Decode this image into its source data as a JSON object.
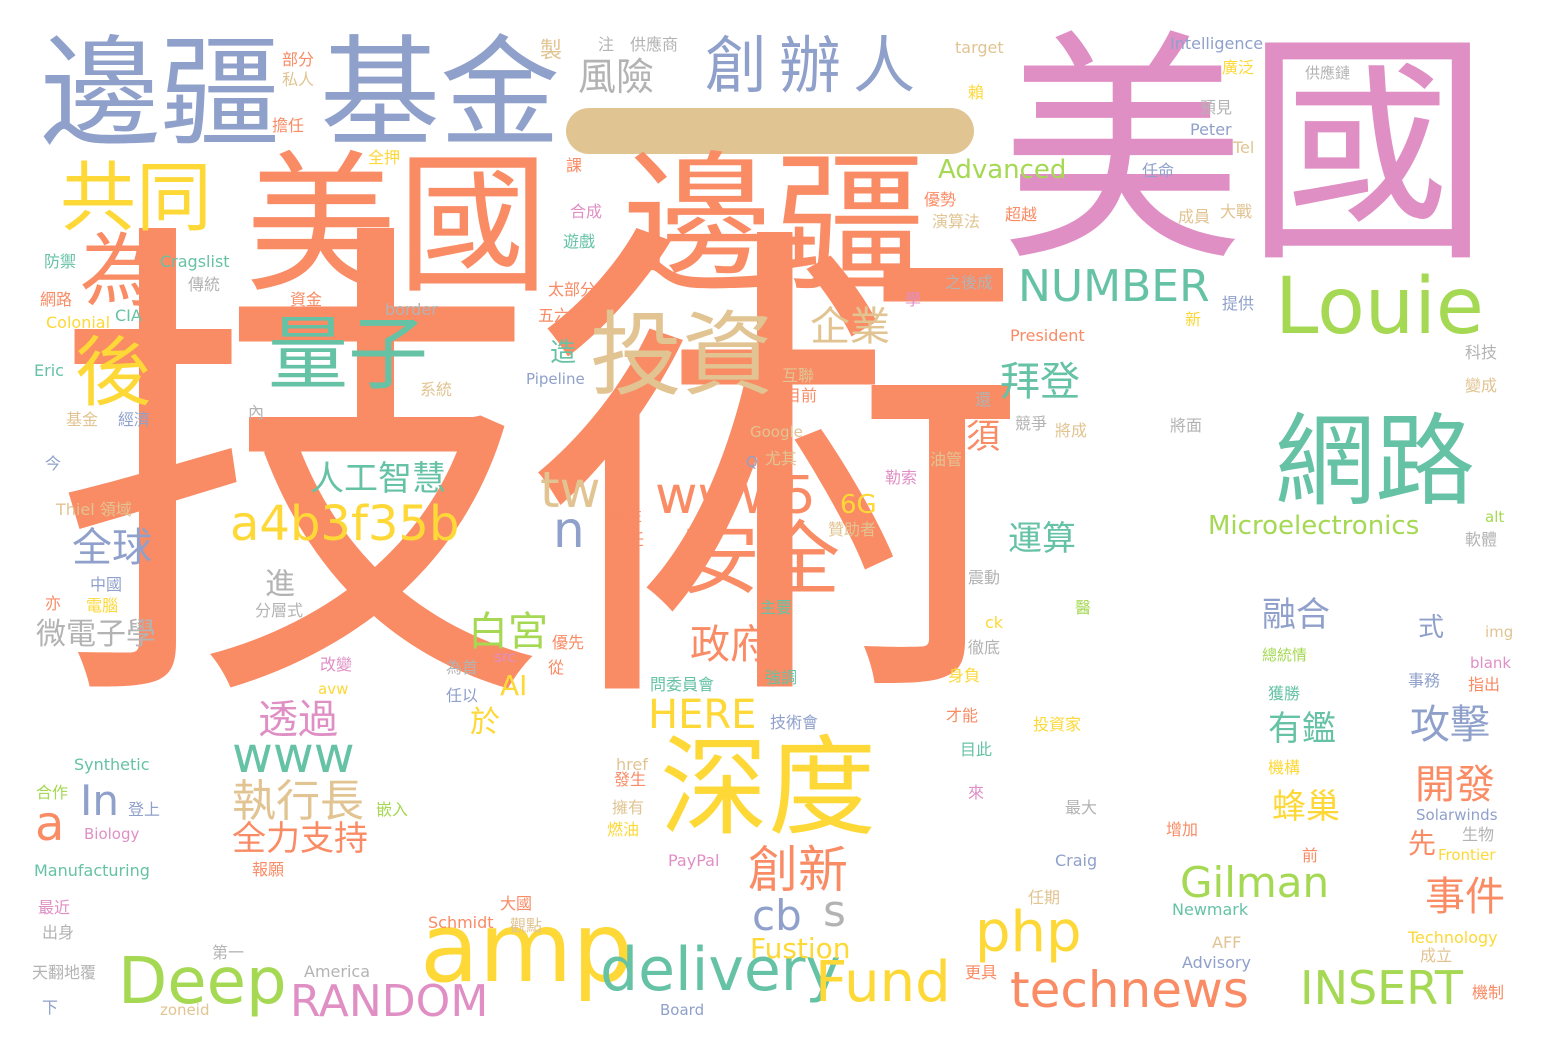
{
  "palette": {
    "orange": "#f98b65",
    "pink": "#e08fc5",
    "blue": "#8fa0cb",
    "green": "#66c2a5",
    "yellow": "#fdd837",
    "lime": "#a5d853",
    "tan": "#e1c492",
    "gray": "#b3b3b3"
  },
  "words": [
    {
      "text": "技術",
      "color": "orange"
    },
    {
      "text": "美國",
      "color": "pink"
    },
    {
      "text": "邊疆",
      "color": "orange"
    },
    {
      "text": "美國",
      "color": "orange"
    },
    {
      "text": "邊疆",
      "color": "blue"
    },
    {
      "text": "基金",
      "color": "blue"
    },
    {
      "text": "深度",
      "color": "yellow"
    },
    {
      "text": "網路",
      "color": "green"
    },
    {
      "text": "投資",
      "color": "tan"
    },
    {
      "text": "amp",
      "color": "yellow"
    },
    {
      "text": "創辦人",
      "color": "blue"
    },
    {
      "text": "Louie",
      "color": "lime"
    },
    {
      "text": "安全",
      "color": "orange"
    },
    {
      "text": "共同",
      "color": "yellow"
    },
    {
      "text": "為",
      "color": "orange"
    },
    {
      "text": "後",
      "color": "yellow"
    },
    {
      "text": "量子",
      "color": "green"
    },
    {
      "text": "delivery",
      "color": "green"
    },
    {
      "text": "technews",
      "color": "orange"
    },
    {
      "text": "Deep",
      "color": "lime"
    },
    {
      "text": "Fund",
      "color": "yellow"
    },
    {
      "text": "www5",
      "color": "orange"
    },
    {
      "text": "a4b3f35b",
      "color": "yellow"
    },
    {
      "text": "php",
      "color": "yellow"
    },
    {
      "text": "INSERT",
      "color": "lime"
    },
    {
      "text": "RANDOM",
      "color": "pink"
    },
    {
      "text": "NUMBER",
      "color": "green"
    },
    {
      "text": "www",
      "color": "green"
    },
    {
      "text": "Gilman",
      "color": "lime"
    },
    {
      "text": "創新",
      "color": "orange"
    },
    {
      "text": "執行長",
      "color": "tan"
    },
    {
      "text": "tw",
      "color": "tan"
    },
    {
      "text": "cb",
      "color": "blue"
    },
    {
      "text": "s",
      "color": "gray"
    },
    {
      "text": "n",
      "color": "blue"
    },
    {
      "text": "a",
      "color": "orange"
    },
    {
      "text": "In",
      "color": "blue"
    },
    {
      "text": "全球",
      "color": "blue"
    },
    {
      "text": "白宮",
      "color": "lime"
    },
    {
      "text": "政府",
      "color": "orange"
    },
    {
      "text": "HERE",
      "color": "yellow"
    },
    {
      "text": "透過",
      "color": "pink"
    },
    {
      "text": "拜登",
      "color": "green"
    },
    {
      "text": "企業",
      "color": "tan"
    },
    {
      "text": "風險",
      "color": "gray"
    },
    {
      "text": "人工智慧",
      "color": "green"
    },
    {
      "text": "全力支持",
      "color": "orange"
    },
    {
      "text": "攻擊",
      "color": "blue"
    },
    {
      "text": "開發",
      "color": "orange"
    },
    {
      "text": "事件",
      "color": "orange"
    },
    {
      "text": "融合",
      "color": "blue"
    },
    {
      "text": "運算",
      "color": "green"
    },
    {
      "text": "有鑑",
      "color": "green"
    },
    {
      "text": "蜂巢",
      "color": "yellow"
    },
    {
      "text": "必須",
      "color": "orange"
    },
    {
      "text": "Microelectronics",
      "color": "lime"
    },
    {
      "text": "Advanced",
      "color": "lime"
    },
    {
      "text": "Fustion",
      "color": "yellow"
    },
    {
      "text": "微電子學",
      "color": "gray"
    },
    {
      "text": "6G",
      "color": "yellow"
    },
    {
      "text": "AI",
      "color": "yellow"
    },
    {
      "text": "於",
      "color": "yellow"
    },
    {
      "text": "進",
      "color": "gray"
    },
    {
      "text": "造",
      "color": "green"
    },
    {
      "text": "先",
      "color": "orange"
    },
    {
      "text": "式",
      "color": "blue"
    },
    {
      "text": "America",
      "color": "gray"
    },
    {
      "text": "Technology",
      "color": "yellow"
    },
    {
      "text": "Intelligence",
      "color": "blue"
    },
    {
      "text": "target",
      "color": "tan"
    },
    {
      "text": "供應商",
      "color": "gray"
    },
    {
      "text": "注",
      "color": "gray"
    },
    {
      "text": "製",
      "color": "tan"
    },
    {
      "text": "部分",
      "color": "orange"
    },
    {
      "text": "私人",
      "color": "tan"
    },
    {
      "text": "擔任",
      "color": "orange"
    },
    {
      "text": "全押",
      "color": "yellow"
    },
    {
      "text": "課",
      "color": "orange"
    },
    {
      "text": "合成",
      "color": "pink"
    },
    {
      "text": "遊戲",
      "color": "green"
    },
    {
      "text": "防禦",
      "color": "green"
    },
    {
      "text": "Cragslist",
      "color": "green"
    },
    {
      "text": "傳統",
      "color": "gray"
    },
    {
      "text": "網路",
      "color": "orange"
    },
    {
      "text": "資金",
      "color": "orange"
    },
    {
      "text": "Colonial",
      "color": "yellow"
    },
    {
      "text": "CIA",
      "color": "green"
    },
    {
      "text": "border",
      "color": "gray"
    },
    {
      "text": "太部分",
      "color": "orange"
    },
    {
      "text": "五六年",
      "color": "orange"
    },
    {
      "text": "Eric",
      "color": "green"
    },
    {
      "text": "Pipeline",
      "color": "blue"
    },
    {
      "text": "系統",
      "color": "tan"
    },
    {
      "text": "基金",
      "color": "tan"
    },
    {
      "text": "經濟",
      "color": "blue"
    },
    {
      "text": "內",
      "color": "gray"
    },
    {
      "text": "今",
      "color": "blue"
    },
    {
      "text": "Thiel 領域",
      "color": "tan"
    },
    {
      "text": "中國",
      "color": "blue"
    },
    {
      "text": "亦",
      "color": "orange"
    },
    {
      "text": "電腦",
      "color": "yellow"
    },
    {
      "text": "分層式",
      "color": "gray"
    },
    {
      "text": "供應鏈",
      "color": "gray"
    },
    {
      "text": "廣泛",
      "color": "yellow"
    },
    {
      "text": "預見",
      "color": "gray"
    },
    {
      "text": "賴",
      "color": "yellow"
    },
    {
      "text": "Peter",
      "color": "blue"
    },
    {
      "text": "Tel",
      "color": "tan"
    },
    {
      "text": "任命",
      "color": "blue"
    },
    {
      "text": "優勢",
      "color": "orange"
    },
    {
      "text": "演算法",
      "color": "tan"
    },
    {
      "text": "超越",
      "color": "orange"
    },
    {
      "text": "成員",
      "color": "tan"
    },
    {
      "text": "大戰",
      "color": "tan"
    },
    {
      "text": "之後成",
      "color": "gray"
    },
    {
      "text": "學",
      "color": "pink"
    },
    {
      "text": "提供",
      "color": "blue"
    },
    {
      "text": "新",
      "color": "yellow"
    },
    {
      "text": "President",
      "color": "orange"
    },
    {
      "text": "互聯",
      "color": "tan"
    },
    {
      "text": "目前",
      "color": "orange"
    },
    {
      "text": "還",
      "color": "gray"
    },
    {
      "text": "將成",
      "color": "tan"
    },
    {
      "text": "將面",
      "color": "gray"
    },
    {
      "text": "競爭",
      "color": "gray"
    },
    {
      "text": "科技",
      "color": "gray"
    },
    {
      "text": "變成",
      "color": "tan"
    },
    {
      "text": "Google",
      "color": "tan"
    },
    {
      "text": "Q",
      "color": "blue"
    },
    {
      "text": "尤其",
      "color": "tan"
    },
    {
      "text": "油管",
      "color": "tan"
    },
    {
      "text": "勒索",
      "color": "pink"
    },
    {
      "text": "時性",
      "color": "orange"
    },
    {
      "text": "重任",
      "color": "orange"
    },
    {
      "text": "贊助者",
      "color": "tan"
    },
    {
      "text": "alt",
      "color": "lime"
    },
    {
      "text": "軟體",
      "color": "gray"
    },
    {
      "text": "震動",
      "color": "gray"
    },
    {
      "text": "主要",
      "color": "green"
    },
    {
      "text": "ck",
      "color": "yellow"
    },
    {
      "text": "醫",
      "color": "lime"
    },
    {
      "text": "徹底",
      "color": "gray"
    },
    {
      "text": "img",
      "color": "tan"
    },
    {
      "text": "blank",
      "color": "pink"
    },
    {
      "text": "總統情",
      "color": "lime"
    },
    {
      "text": "事務",
      "color": "blue"
    },
    {
      "text": "指出",
      "color": "orange"
    },
    {
      "text": "優先",
      "color": "orange"
    },
    {
      "text": "從",
      "color": "orange"
    },
    {
      "text": "src",
      "color": "pink"
    },
    {
      "text": "改變",
      "color": "pink"
    },
    {
      "text": "為首",
      "color": "gray"
    },
    {
      "text": "avw",
      "color": "yellow"
    },
    {
      "text": "任以",
      "color": "blue"
    },
    {
      "text": "問委員會",
      "color": "green"
    },
    {
      "text": "強調",
      "color": "green"
    },
    {
      "text": "身負",
      "color": "yellow"
    },
    {
      "text": "才能",
      "color": "orange"
    },
    {
      "text": "獲勝",
      "color": "green"
    },
    {
      "text": "技術會",
      "color": "blue"
    },
    {
      "text": "投資家",
      "color": "yellow"
    },
    {
      "text": "目此",
      "color": "green"
    },
    {
      "text": "Synthetic",
      "color": "green"
    },
    {
      "text": "href",
      "color": "tan"
    },
    {
      "text": "發生",
      "color": "orange"
    },
    {
      "text": "機構",
      "color": "yellow"
    },
    {
      "text": "擁有",
      "color": "tan"
    },
    {
      "text": "燃油",
      "color": "yellow"
    },
    {
      "text": "來",
      "color": "pink"
    },
    {
      "text": "最大",
      "color": "gray"
    },
    {
      "text": "增加",
      "color": "orange"
    },
    {
      "text": "Solarwinds",
      "color": "blue"
    },
    {
      "text": "合作",
      "color": "lime"
    },
    {
      "text": "登上",
      "color": "blue"
    },
    {
      "text": "Biology",
      "color": "pink"
    },
    {
      "text": "嵌入",
      "color": "lime"
    },
    {
      "text": "生物",
      "color": "gray"
    },
    {
      "text": "Frontier",
      "color": "yellow"
    },
    {
      "text": "前",
      "color": "orange"
    },
    {
      "text": "Manufacturing",
      "color": "green"
    },
    {
      "text": "報願",
      "color": "orange"
    },
    {
      "text": "PayPal",
      "color": "pink"
    },
    {
      "text": "Craig",
      "color": "blue"
    },
    {
      "text": "任期",
      "color": "tan"
    },
    {
      "text": "最近",
      "color": "pink"
    },
    {
      "text": "Newmark",
      "color": "green"
    },
    {
      "text": "出身",
      "color": "gray"
    },
    {
      "text": "Schmidt",
      "color": "orange"
    },
    {
      "text": "大國",
      "color": "orange"
    },
    {
      "text": "觀點",
      "color": "tan"
    },
    {
      "text": "第一",
      "color": "gray"
    },
    {
      "text": "AFF",
      "color": "tan"
    },
    {
      "text": "成立",
      "color": "tan"
    },
    {
      "text": "Advisory",
      "color": "blue"
    },
    {
      "text": "天翻地覆",
      "color": "gray"
    },
    {
      "text": "更具",
      "color": "orange"
    },
    {
      "text": "機制",
      "color": "orange"
    },
    {
      "text": "下",
      "color": "blue"
    },
    {
      "text": "zoneid",
      "color": "tan"
    },
    {
      "text": "Board",
      "color": "blue"
    }
  ]
}
